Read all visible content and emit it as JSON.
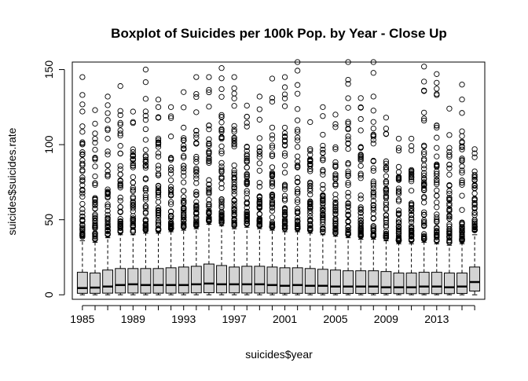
{
  "chart_data": {
    "type": "boxplot",
    "title": "Boxplot of Suicides per 100k Pop. by Year - Close Up",
    "xlabel": "suicides$year",
    "ylabel": "suicides$suicides.rate",
    "ylim": [
      -3,
      155
    ],
    "yticks": [
      0,
      50,
      100,
      150
    ],
    "xtick_labels": [
      "1985",
      "1989",
      "1993",
      "1997",
      "2001",
      "2005",
      "2009",
      "2013"
    ],
    "categories": [
      "1985",
      "1986",
      "1987",
      "1988",
      "1989",
      "1990",
      "1991",
      "1992",
      "1993",
      "1994",
      "1995",
      "1996",
      "1997",
      "1998",
      "1999",
      "2000",
      "2001",
      "2002",
      "2003",
      "2004",
      "2005",
      "2006",
      "2007",
      "2008",
      "2009",
      "2010",
      "2011",
      "2012",
      "2013",
      "2014",
      "2015",
      "2016"
    ],
    "boxes": [
      {
        "q1": 1.0,
        "median": 4.5,
        "q3": 15.0,
        "whisker_low": 0,
        "whisker_high": 36,
        "outlier_min": 38,
        "outlier_max": 145
      },
      {
        "q1": 1.0,
        "median": 4.8,
        "q3": 14.5,
        "whisker_low": 0,
        "whisker_high": 35,
        "outlier_min": 37,
        "outlier_max": 123
      },
      {
        "q1": 1.1,
        "median": 5.5,
        "q3": 16.5,
        "whisker_low": 0,
        "whisker_high": 38,
        "outlier_min": 40,
        "outlier_max": 132
      },
      {
        "q1": 1.2,
        "median": 6.5,
        "q3": 17.5,
        "whisker_low": 0,
        "whisker_high": 40,
        "outlier_min": 42,
        "outlier_max": 139
      },
      {
        "q1": 1.2,
        "median": 7.0,
        "q3": 17.5,
        "whisker_low": 0,
        "whisker_high": 40,
        "outlier_min": 42,
        "outlier_max": 122
      },
      {
        "q1": 1.1,
        "median": 6.5,
        "q3": 17.5,
        "whisker_low": 0,
        "whisker_high": 41,
        "outlier_min": 43,
        "outlier_max": 150
      },
      {
        "q1": 1.1,
        "median": 6.5,
        "q3": 17.5,
        "whisker_low": 0,
        "whisker_high": 41,
        "outlier_min": 43,
        "outlier_max": 130
      },
      {
        "q1": 1.1,
        "median": 6.5,
        "q3": 18.0,
        "whisker_low": 0,
        "whisker_high": 42,
        "outlier_min": 44,
        "outlier_max": 125
      },
      {
        "q1": 1.2,
        "median": 6.5,
        "q3": 18.5,
        "whisker_low": 0,
        "whisker_high": 43,
        "outlier_min": 45,
        "outlier_max": 135
      },
      {
        "q1": 1.3,
        "median": 7.0,
        "q3": 19.0,
        "whisker_low": 0,
        "whisker_high": 44,
        "outlier_min": 46,
        "outlier_max": 145
      },
      {
        "q1": 1.4,
        "median": 7.5,
        "q3": 20.5,
        "whisker_low": 0,
        "whisker_high": 47,
        "outlier_min": 49,
        "outlier_max": 145
      },
      {
        "q1": 1.3,
        "median": 7.0,
        "q3": 19.5,
        "whisker_low": 0,
        "whisker_high": 46,
        "outlier_min": 48,
        "outlier_max": 151
      },
      {
        "q1": 1.3,
        "median": 7.0,
        "q3": 18.5,
        "whisker_low": 0,
        "whisker_high": 44,
        "outlier_min": 46,
        "outlier_max": 145
      },
      {
        "q1": 1.2,
        "median": 7.0,
        "q3": 19.0,
        "whisker_low": 0,
        "whisker_high": 45,
        "outlier_min": 47,
        "outlier_max": 126
      },
      {
        "q1": 1.2,
        "median": 7.0,
        "q3": 19.0,
        "whisker_low": 0,
        "whisker_high": 44,
        "outlier_min": 46,
        "outlier_max": 132
      },
      {
        "q1": 1.1,
        "median": 6.5,
        "q3": 18.5,
        "whisker_low": 0,
        "whisker_high": 43,
        "outlier_min": 45,
        "outlier_max": 144
      },
      {
        "q1": 1.0,
        "median": 6.0,
        "q3": 18.0,
        "whisker_low": 0,
        "whisker_high": 42,
        "outlier_min": 44,
        "outlier_max": 145
      },
      {
        "q1": 1.0,
        "median": 6.5,
        "q3": 18.0,
        "whisker_low": 0,
        "whisker_high": 42,
        "outlier_min": 44,
        "outlier_max": 155
      },
      {
        "q1": 1.0,
        "median": 6.0,
        "q3": 17.5,
        "whisker_low": 0,
        "whisker_high": 41,
        "outlier_min": 43,
        "outlier_max": 115
      },
      {
        "q1": 1.0,
        "median": 6.0,
        "q3": 17.0,
        "whisker_low": 0,
        "whisker_high": 40,
        "outlier_min": 42,
        "outlier_max": 125
      },
      {
        "q1": 0.9,
        "median": 5.5,
        "q3": 16.5,
        "whisker_low": 0,
        "whisker_high": 39,
        "outlier_min": 41,
        "outlier_max": 120
      },
      {
        "q1": 0.9,
        "median": 5.5,
        "q3": 16.0,
        "whisker_low": 0,
        "whisker_high": 38,
        "outlier_min": 40,
        "outlier_max": 155
      },
      {
        "q1": 0.9,
        "median": 5.5,
        "q3": 16.0,
        "whisker_low": 0,
        "whisker_high": 37,
        "outlier_min": 39,
        "outlier_max": 131
      },
      {
        "q1": 0.9,
        "median": 5.5,
        "q3": 16.0,
        "whisker_low": 0,
        "whisker_high": 37,
        "outlier_min": 39,
        "outlier_max": 155
      },
      {
        "q1": 0.9,
        "median": 5.0,
        "q3": 15.5,
        "whisker_low": 0,
        "whisker_high": 36,
        "outlier_min": 38,
        "outlier_max": 118
      },
      {
        "q1": 0.8,
        "median": 5.0,
        "q3": 14.5,
        "whisker_low": 0,
        "whisker_high": 34,
        "outlier_min": 36,
        "outlier_max": 104
      },
      {
        "q1": 0.8,
        "median": 5.0,
        "q3": 14.5,
        "whisker_low": 0,
        "whisker_high": 34,
        "outlier_min": 36,
        "outlier_max": 104
      },
      {
        "q1": 0.8,
        "median": 5.5,
        "q3": 15.0,
        "whisker_low": 0,
        "whisker_high": 35,
        "outlier_min": 37,
        "outlier_max": 152
      },
      {
        "q1": 0.8,
        "median": 5.5,
        "q3": 15.0,
        "whisker_low": 0,
        "whisker_high": 34,
        "outlier_min": 36,
        "outlier_max": 147
      },
      {
        "q1": 0.8,
        "median": 5.0,
        "q3": 14.5,
        "whisker_low": 0,
        "whisker_high": 33,
        "outlier_min": 35,
        "outlier_max": 124
      },
      {
        "q1": 0.9,
        "median": 5.5,
        "q3": 14.5,
        "whisker_low": 0,
        "whisker_high": 34,
        "outlier_min": 36,
        "outlier_max": 140
      },
      {
        "q1": 2.5,
        "median": 8.5,
        "q3": 18.5,
        "whisker_low": 0,
        "whisker_high": 40,
        "outlier_min": 43,
        "outlier_max": 97
      }
    ]
  }
}
